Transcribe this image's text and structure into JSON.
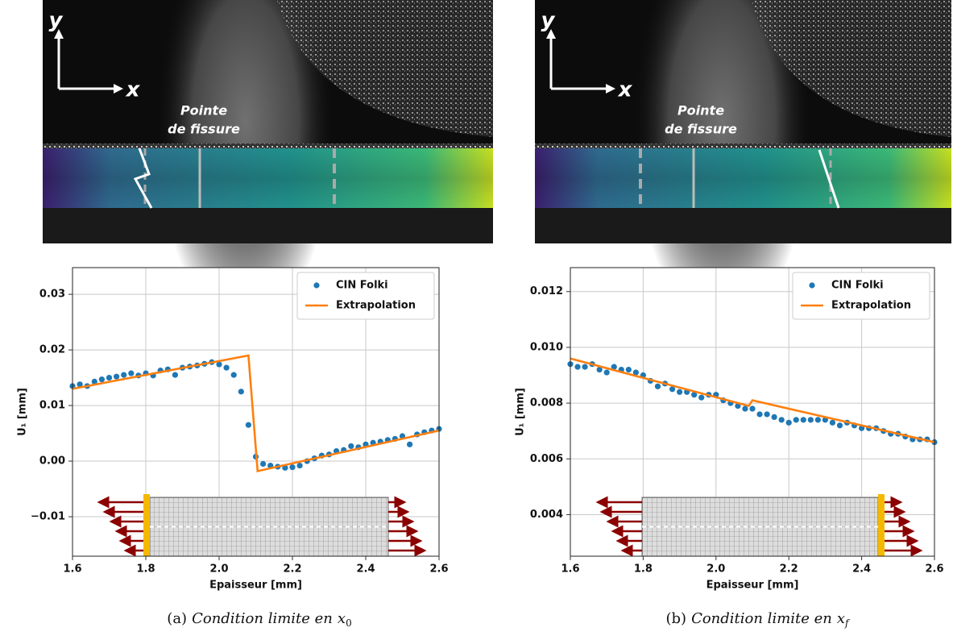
{
  "chart_data": [
    {
      "type": "scatter",
      "photo_labels": {
        "y": "y",
        "x": "x",
        "tip": [
          "Pointe",
          "de fissure"
        ]
      },
      "caption": {
        "label": "(a)",
        "text": "Condition limite en",
        "var": "x",
        "sub": "0"
      },
      "xlabel": "Epaisseur [mm]",
      "ylabel": "U₁ [mm]",
      "xlim": [
        1.6,
        2.6
      ],
      "ylim": [
        -0.0171,
        0.0348
      ],
      "xticks": [
        {
          "value": 1.6,
          "label": "1.6"
        },
        {
          "value": 1.8,
          "label": "1.8"
        },
        {
          "value": 2.0,
          "label": "2.0"
        },
        {
          "value": 2.2,
          "label": "2.2"
        },
        {
          "value": 2.4,
          "label": "2.4"
        },
        {
          "value": 2.6,
          "label": "2.6"
        }
      ],
      "yticks": [
        {
          "value": -0.01,
          "label": "−0.01"
        },
        {
          "value": 0.0,
          "label": "0.00"
        },
        {
          "value": 0.01,
          "label": "0.01"
        },
        {
          "value": 0.02,
          "label": "0.02"
        },
        {
          "value": 0.03,
          "label": "0.03"
        }
      ],
      "grid": true,
      "legend": "upper right",
      "series": [
        {
          "name": "CIN Folki",
          "type": "scatter",
          "color": "#1f77b4",
          "x": [
            1.6,
            1.62,
            1.64,
            1.66,
            1.68,
            1.7,
            1.72,
            1.74,
            1.76,
            1.78,
            1.8,
            1.82,
            1.84,
            1.86,
            1.88,
            1.9,
            1.92,
            1.94,
            1.96,
            1.98,
            2.0,
            2.02,
            2.04,
            2.06,
            2.08,
            2.1,
            2.12,
            2.14,
            2.16,
            2.18,
            2.2,
            2.22,
            2.24,
            2.26,
            2.28,
            2.3,
            2.32,
            2.34,
            2.36,
            2.38,
            2.4,
            2.42,
            2.44,
            2.46,
            2.48,
            2.5,
            2.52,
            2.54,
            2.56,
            2.58,
            2.6
          ],
          "values": [
            0.0135,
            0.0138,
            0.0135,
            0.0143,
            0.0147,
            0.015,
            0.0152,
            0.0155,
            0.0158,
            0.0154,
            0.0158,
            0.0154,
            0.0163,
            0.0165,
            0.0155,
            0.0168,
            0.017,
            0.0172,
            0.0175,
            0.0178,
            0.0174,
            0.0168,
            0.0155,
            0.0125,
            0.0065,
            0.0008,
            -0.0005,
            -0.0008,
            -0.001,
            -0.0012,
            -0.0011,
            -0.0008,
            0.0,
            0.0005,
            0.001,
            0.0012,
            0.0018,
            0.002,
            0.0027,
            0.0025,
            0.003,
            0.0033,
            0.0035,
            0.0038,
            0.004,
            0.0045,
            0.003,
            0.0048,
            0.0052,
            0.0055,
            0.0058
          ]
        },
        {
          "name": "Extrapolation",
          "type": "line",
          "color": "#ff7f0e",
          "x": [
            1.6,
            2.08,
            2.105,
            2.6
          ],
          "values": [
            0.013,
            0.019,
            -0.0018,
            0.0055
          ]
        }
      ]
    },
    {
      "type": "scatter",
      "photo_labels": {
        "y": "y",
        "x": "x",
        "tip": [
          "Pointe",
          "de fissure"
        ]
      },
      "caption": {
        "label": "(b)",
        "text": "Condition limite en",
        "var": "x",
        "sub": "f"
      },
      "xlabel": "Epaisseur [mm]",
      "ylabel": "U₁ [mm]",
      "xlim": [
        1.6,
        2.6
      ],
      "ylim": [
        0.00251,
        0.01286
      ],
      "xticks": [
        {
          "value": 1.6,
          "label": "1.6"
        },
        {
          "value": 1.8,
          "label": "1.8"
        },
        {
          "value": 2.0,
          "label": "2.0"
        },
        {
          "value": 2.2,
          "label": "2.2"
        },
        {
          "value": 2.4,
          "label": "2.4"
        },
        {
          "value": 2.6,
          "label": "2.6"
        }
      ],
      "yticks": [
        0.004,
        0.006,
        0.008,
        {
          "value": 0.01,
          "label": "0.010"
        },
        0.012
      ],
      "grid": true,
      "legend": "upper right",
      "series": [
        {
          "name": "CIN Folki",
          "type": "scatter",
          "color": "#1f77b4",
          "x": [
            1.6,
            1.62,
            1.64,
            1.66,
            1.68,
            1.7,
            1.72,
            1.74,
            1.76,
            1.78,
            1.8,
            1.82,
            1.84,
            1.86,
            1.88,
            1.9,
            1.92,
            1.94,
            1.96,
            1.98,
            2.0,
            2.02,
            2.04,
            2.06,
            2.08,
            2.1,
            2.12,
            2.14,
            2.16,
            2.18,
            2.2,
            2.22,
            2.24,
            2.26,
            2.28,
            2.3,
            2.32,
            2.34,
            2.36,
            2.38,
            2.4,
            2.42,
            2.44,
            2.46,
            2.48,
            2.5,
            2.52,
            2.54,
            2.56,
            2.58,
            2.6
          ],
          "values": [
            0.0094,
            0.0093,
            0.0093,
            0.0094,
            0.0092,
            0.0091,
            0.0093,
            0.0092,
            0.0092,
            0.0091,
            0.009,
            0.0088,
            0.0086,
            0.0087,
            0.0085,
            0.0084,
            0.0084,
            0.0083,
            0.0082,
            0.0083,
            0.0083,
            0.0081,
            0.008,
            0.0079,
            0.0078,
            0.0078,
            0.0076,
            0.0076,
            0.0075,
            0.0074,
            0.0073,
            0.0074,
            0.0074,
            0.0074,
            0.0074,
            0.0074,
            0.0073,
            0.0072,
            0.0073,
            0.0072,
            0.0071,
            0.0071,
            0.0071,
            0.007,
            0.0069,
            0.0069,
            0.0068,
            0.0067,
            0.0067,
            0.0067,
            0.0066
          ]
        },
        {
          "name": "Extrapolation",
          "type": "line",
          "color": "#ff7f0e",
          "x": [
            1.6,
            2.09,
            2.1,
            2.6
          ],
          "values": [
            0.0096,
            0.0079,
            0.0081,
            0.0066
          ]
        }
      ]
    }
  ]
}
